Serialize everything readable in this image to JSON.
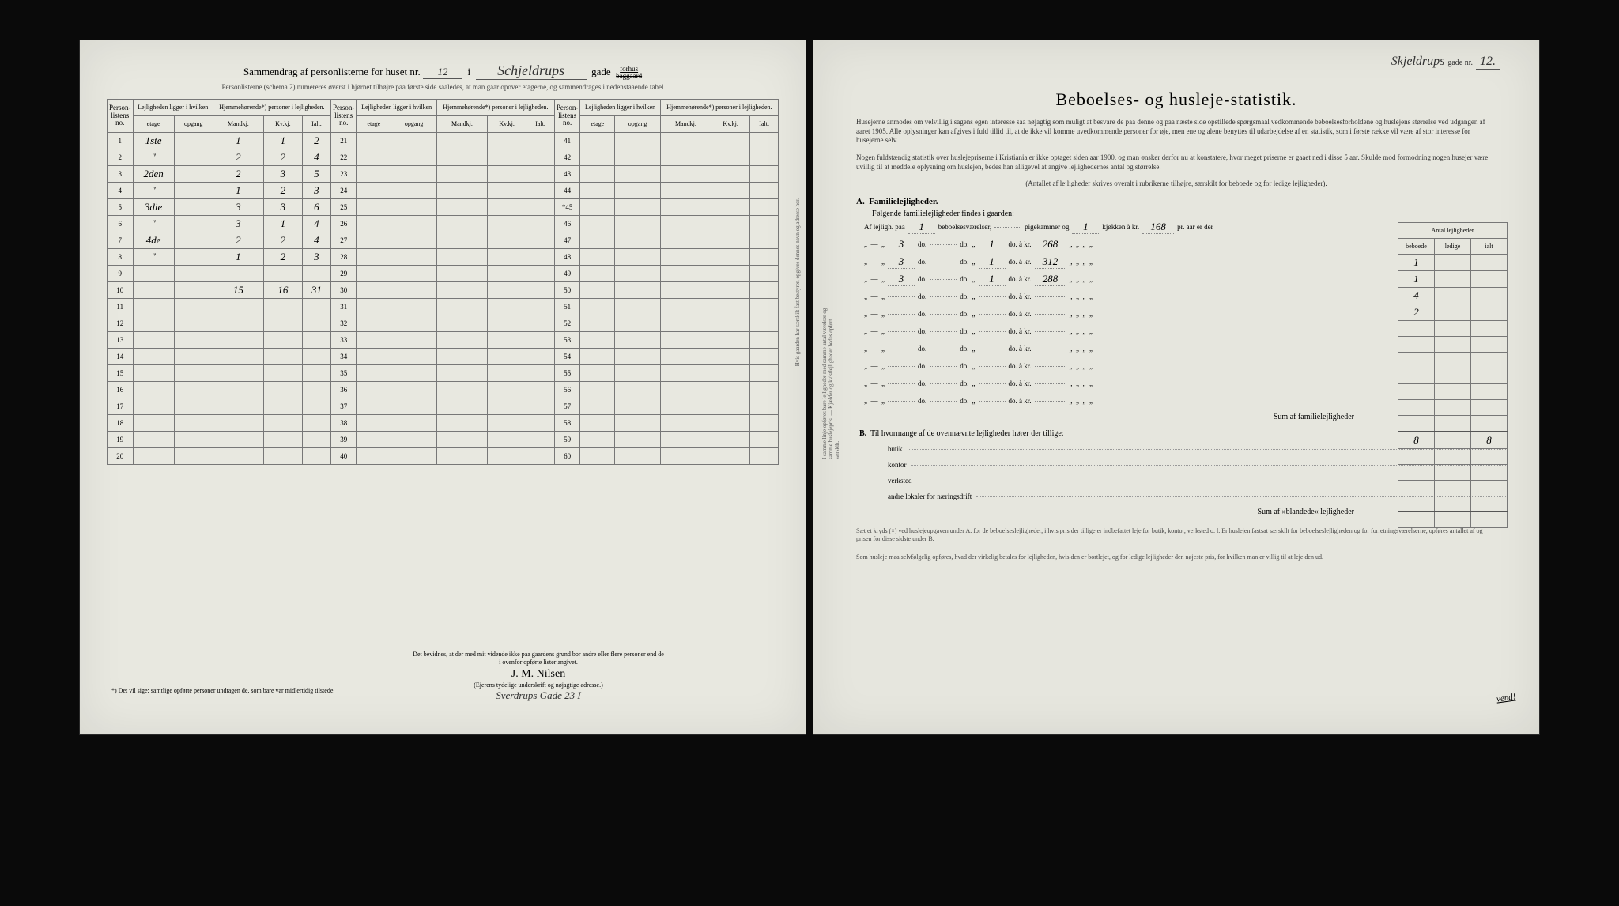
{
  "left": {
    "title_prefix": "Sammendrag af personlisterne for huset nr.",
    "house_no": "12",
    "i": "i",
    "street": "Schjeldrups",
    "gade": "gade",
    "forhus": "forhus",
    "baggaard": "baggaard",
    "subtitle": "Personlisterne (schema 2) numereres øverst i hjørnet tilhøjre paa første side saaledes, at man gaar opover etagerne, og sammendrages i nedenstaaende tabel",
    "headers": {
      "personlistens_no": "Person-listens no.",
      "lejligheden": "Lejligheden ligger i hvilken",
      "etage": "etage",
      "opgang": "opgang",
      "hjemme": "Hjemmehørende*) personer i lejligheden.",
      "mandkj": "Mandkj.",
      "kvkj": "Kv.kj.",
      "ialt": "Ialt."
    },
    "rows": [
      {
        "n": "1",
        "etage": "1ste",
        "op": "",
        "m": "1",
        "k": "1",
        "i": "2"
      },
      {
        "n": "2",
        "etage": "\"",
        "op": "",
        "m": "2",
        "k": "2",
        "i": "4"
      },
      {
        "n": "3",
        "etage": "2den",
        "op": "",
        "m": "2",
        "k": "3",
        "i": "5"
      },
      {
        "n": "4",
        "etage": "\"",
        "op": "",
        "m": "1",
        "k": "2",
        "i": "3"
      },
      {
        "n": "5",
        "etage": "3die",
        "op": "",
        "m": "3",
        "k": "3",
        "i": "6"
      },
      {
        "n": "6",
        "etage": "\"",
        "op": "",
        "m": "3",
        "k": "1",
        "i": "4"
      },
      {
        "n": "7",
        "etage": "4de",
        "op": "",
        "m": "2",
        "k": "2",
        "i": "4"
      },
      {
        "n": "8",
        "etage": "\"",
        "op": "",
        "m": "1",
        "k": "2",
        "i": "3"
      },
      {
        "n": "9"
      },
      {
        "n": "10",
        "m": "15",
        "k": "16",
        "i": "31"
      },
      {
        "n": "11"
      },
      {
        "n": "12"
      },
      {
        "n": "13"
      },
      {
        "n": "14"
      },
      {
        "n": "15"
      },
      {
        "n": "16"
      },
      {
        "n": "17"
      },
      {
        "n": "18"
      },
      {
        "n": "19"
      },
      {
        "n": "20"
      }
    ],
    "rows2": [
      "21",
      "22",
      "23",
      "24",
      "25",
      "26",
      "27",
      "28",
      "29",
      "30",
      "31",
      "32",
      "33",
      "34",
      "35",
      "36",
      "37",
      "38",
      "39",
      "40"
    ],
    "rows3": [
      "41",
      "42",
      "43",
      "44",
      "45",
      "46",
      "47",
      "48",
      "49",
      "50",
      "51",
      "52",
      "53",
      "54",
      "55",
      "56",
      "57",
      "58",
      "59",
      "60"
    ],
    "dotrow": "*45",
    "footnote_left": "*) Det vil sige: samtlige opførte personer undtagen de, som bare var midlertidig tilstede.",
    "footnote_right": "Det bevidnes, at der med mit vidende ikke paa gaardens grund bor andre eller flere personer end de i ovenfor opførte lister angivet.",
    "signature": "J. M. Nilsen",
    "sig_caption": "(Ejerens tydelige underskrift og nøjagtige adresse.)",
    "address_hw": "Sverdrups Gade 23 I",
    "sidebar": "Hvis gaarden har særskilt fast bestyrer, opgives dennes navn og adresse her."
  },
  "right": {
    "top_street": "Skjeldrups",
    "top_gade": "gade nr.",
    "top_no": "12.",
    "title": "Beboelses- og husleje-statistik.",
    "intro1": "Husejerne anmodes om velvillig i sagens egen interesse saa nøjagtig som muligt at besvare de paa denne og paa næste side opstillede spørgsmaal vedkommende beboelsesforholdene og huslejens størrelse ved udgangen af aaret 1905. Alle oplysninger kan afgives i fuld tillid til, at de ikke vil komme uvedkommende personer for øje, men ene og alene benyttes til udarbejdelse af en statistik, som i første række vil være af stor interesse for husejerne selv.",
    "intro2": "Nogen fuldstændig statistik over huslejepriserne i Kristiania er ikke optaget siden aar 1900, og man ønsker derfor nu at konstatere, hvor meget priserne er gaaet ned i disse 5 aar. Skulde mod formodning nogen husejer være uvillig til at meddele oplysning om huslejen, bedes han alligevel at angive lejlighedernes antal og størrelse.",
    "intro3": "(Antallet af lejligheder skrives overalt i rubrikerne tilhøjre, særskilt for beboede og for ledige lejligheder).",
    "antal_hdr": "Antal lejligheder",
    "col_beboede": "beboede",
    "col_ledige": "ledige",
    "col_ialt": "ialt",
    "A_label": "A.",
    "A_title": "Familielejligheder.",
    "A_sub": "Følgende familielejligheder findes i gaarden:",
    "row_tpl": {
      "af": "Af lejligh. paa",
      "beboelse": "beboelsesværelser,",
      "pigekammer": "pigekammer og",
      "kjokken": "kjøkken à kr.",
      "pr_aar": "pr. aar er der"
    },
    "do": "do.",
    "akr": "à kr.",
    "apt_rows": [
      {
        "rooms": "1",
        "pige": "",
        "kjok": "1",
        "price": "168",
        "beboede": "1"
      },
      {
        "rooms": "3",
        "pige": "",
        "kjok": "1",
        "price": "268",
        "beboede": "1"
      },
      {
        "rooms": "3",
        "pige": "",
        "kjok": "1",
        "price": "312",
        "beboede": "4"
      },
      {
        "rooms": "3",
        "pige": "",
        "kjok": "1",
        "price": "288",
        "beboede": "2"
      },
      {},
      {},
      {},
      {},
      {},
      {},
      {}
    ],
    "sum_fam": "Sum af familielejligheder",
    "sum_beboede": "8",
    "sum_ialt": "8",
    "B_label": "B.",
    "B_text": "Til hvormange af de ovennævnte lejligheder hører der tillige:",
    "b_items": [
      "butik",
      "kontor",
      "verksted",
      "andre lokaler for næringsdrift"
    ],
    "sum_bland": "Sum af »blandede« lejligheder",
    "bottom1": "Sæt et kryds (×) ved huslejeopgaven under A. for de beboelseslejligheder, i hvis pris der tillige er indbefattet leje for butik, kontor, verksted o. l. Er huslejen fastsat særskilt for beboelseslejligheden og for forretningsværelserne, opføres antallet af og prisen for disse sidste under B.",
    "bottom2": "Som husleje maa selvfølgelig opføres, hvad der virkelig betales for lejligheden, hvis den er bortlejet, og for ledige lejligheder den nøjeste pris, for hvilken man er villig til at leje den ud.",
    "vend": "vend!",
    "side_note": "I samme linje opføres bare lejligheder med samme antal værelser og samme huslejepris. — Kjælder og kvistlejligheder bedes opført særskilt."
  },
  "style": {
    "page_bg": "#e8e8e0",
    "ink": "#333333",
    "border": "#777777",
    "dot": "#999999",
    "frame_bg": "#0a0a0a",
    "hw_font": "Brush Script MT",
    "body_font": "Georgia",
    "title_fontsize": 22,
    "body_fontsize": 10,
    "small_fontsize": 8
  }
}
